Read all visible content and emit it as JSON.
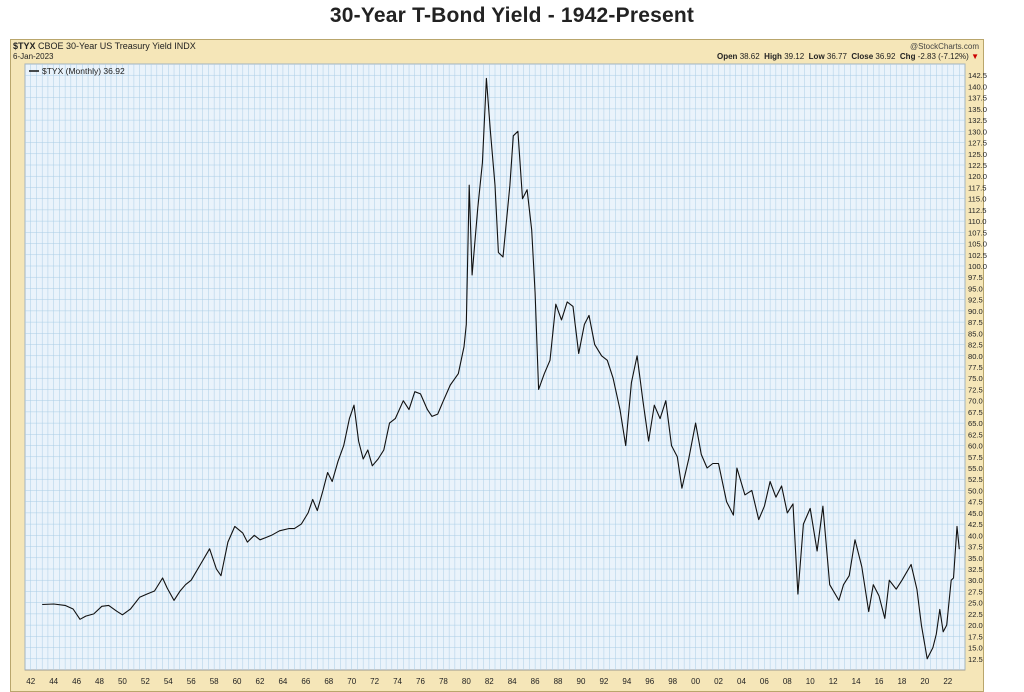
{
  "page": {
    "title": "30-Year T-Bond Yield - 1942-Present"
  },
  "header": {
    "symbol": "$TYX",
    "description": "CBOE 30-Year US Treasury Yield INDX",
    "date": "6-Jan-2023",
    "source": "@StockCharts.com",
    "legend": "$TYX (Monthly) 36.92",
    "open_label": "Open",
    "open": "38.62",
    "high_label": "High",
    "high": "39.12",
    "low_label": "Low",
    "low": "36.77",
    "close_label": "Close",
    "close": "36.92",
    "chg_label": "Chg",
    "chg": "-2.83 (-7.12%)"
  },
  "colors": {
    "frame": "#f5e6b8",
    "plot_bg": "#eaf3fb",
    "grid": "#aacde6",
    "line": "#111111",
    "down_marker": "#cc0000"
  },
  "chart_data": {
    "type": "line",
    "title": "30-Year T-Bond Yield - 1942-Present",
    "series": [
      {
        "name": "$TYX (Monthly) 36.92",
        "points": [
          [
            1943.0,
            24.6
          ],
          [
            1944.0,
            24.7
          ],
          [
            1945.0,
            24.4
          ],
          [
            1945.7,
            23.6
          ],
          [
            1946.3,
            21.3
          ],
          [
            1946.8,
            22.0
          ],
          [
            1947.5,
            22.5
          ],
          [
            1948.2,
            24.2
          ],
          [
            1948.8,
            24.4
          ],
          [
            1949.5,
            23.1
          ],
          [
            1950.0,
            22.3
          ],
          [
            1950.7,
            23.6
          ],
          [
            1951.5,
            26.2
          ],
          [
            1952.2,
            27.0
          ],
          [
            1952.8,
            27.6
          ],
          [
            1953.5,
            30.5
          ],
          [
            1953.9,
            28.3
          ],
          [
            1954.5,
            25.5
          ],
          [
            1955.0,
            27.5
          ],
          [
            1955.5,
            29.0
          ],
          [
            1956.0,
            30.0
          ],
          [
            1956.8,
            33.5
          ],
          [
            1957.6,
            37.0
          ],
          [
            1958.2,
            32.5
          ],
          [
            1958.6,
            31.0
          ],
          [
            1959.2,
            38.5
          ],
          [
            1959.8,
            42.0
          ],
          [
            1960.5,
            40.5
          ],
          [
            1960.9,
            38.5
          ],
          [
            1961.5,
            40.0
          ],
          [
            1962.0,
            39.0
          ],
          [
            1962.5,
            39.5
          ],
          [
            1963.0,
            40.0
          ],
          [
            1963.7,
            41.0
          ],
          [
            1964.5,
            41.5
          ],
          [
            1965.0,
            41.5
          ],
          [
            1965.6,
            42.5
          ],
          [
            1966.2,
            45.0
          ],
          [
            1966.6,
            48.0
          ],
          [
            1967.0,
            45.5
          ],
          [
            1967.5,
            50.0
          ],
          [
            1967.9,
            54.0
          ],
          [
            1968.3,
            52.0
          ],
          [
            1968.8,
            56.5
          ],
          [
            1969.3,
            60.0
          ],
          [
            1969.8,
            66.0
          ],
          [
            1970.2,
            69.0
          ],
          [
            1970.6,
            61.0
          ],
          [
            1971.0,
            57.0
          ],
          [
            1971.4,
            59.0
          ],
          [
            1971.8,
            55.5
          ],
          [
            1972.3,
            57.0
          ],
          [
            1972.8,
            59.0
          ],
          [
            1973.3,
            65.0
          ],
          [
            1973.8,
            66.0
          ],
          [
            1974.5,
            70.0
          ],
          [
            1975.0,
            68.0
          ],
          [
            1975.5,
            72.0
          ],
          [
            1976.0,
            71.5
          ],
          [
            1976.6,
            68.0
          ],
          [
            1977.0,
            66.5
          ],
          [
            1977.5,
            67.0
          ],
          [
            1978.0,
            70.0
          ],
          [
            1978.6,
            73.5
          ],
          [
            1979.3,
            76.0
          ],
          [
            1979.8,
            82.0
          ],
          [
            1980.0,
            87.0
          ],
          [
            1980.25,
            118.0
          ],
          [
            1980.5,
            98.0
          ],
          [
            1981.0,
            113.0
          ],
          [
            1981.4,
            123.0
          ],
          [
            1981.75,
            141.8
          ],
          [
            1982.1,
            130.0
          ],
          [
            1982.5,
            118.0
          ],
          [
            1982.8,
            103.0
          ],
          [
            1983.2,
            102.0
          ],
          [
            1983.8,
            118.0
          ],
          [
            1984.1,
            129.0
          ],
          [
            1984.5,
            130.0
          ],
          [
            1984.9,
            115.0
          ],
          [
            1985.3,
            117.0
          ],
          [
            1985.7,
            108.0
          ],
          [
            1986.0,
            94.0
          ],
          [
            1986.3,
            72.5
          ],
          [
            1986.8,
            76.0
          ],
          [
            1987.3,
            79.0
          ],
          [
            1987.8,
            91.5
          ],
          [
            1988.3,
            88.0
          ],
          [
            1988.8,
            92.0
          ],
          [
            1989.3,
            91.0
          ],
          [
            1989.8,
            80.5
          ],
          [
            1990.3,
            87.0
          ],
          [
            1990.7,
            89.0
          ],
          [
            1991.2,
            82.5
          ],
          [
            1991.8,
            80.0
          ],
          [
            1992.3,
            79.0
          ],
          [
            1992.8,
            75.0
          ],
          [
            1993.4,
            68.0
          ],
          [
            1993.9,
            60.0
          ],
          [
            1994.4,
            74.0
          ],
          [
            1994.9,
            80.0
          ],
          [
            1995.4,
            70.0
          ],
          [
            1995.9,
            61.0
          ],
          [
            1996.4,
            69.0
          ],
          [
            1996.9,
            66.0
          ],
          [
            1997.4,
            70.0
          ],
          [
            1997.9,
            60.0
          ],
          [
            1998.4,
            57.5
          ],
          [
            1998.8,
            50.5
          ],
          [
            1999.4,
            57.0
          ],
          [
            2000.0,
            65.0
          ],
          [
            2000.5,
            58.0
          ],
          [
            2001.0,
            55.0
          ],
          [
            2001.5,
            56.0
          ],
          [
            2002.0,
            56.0
          ],
          [
            2002.7,
            47.5
          ],
          [
            2003.3,
            44.5
          ],
          [
            2003.6,
            55.0
          ],
          [
            2004.3,
            49.0
          ],
          [
            2004.9,
            50.0
          ],
          [
            2005.5,
            43.5
          ],
          [
            2006.0,
            46.5
          ],
          [
            2006.5,
            52.0
          ],
          [
            2007.0,
            48.5
          ],
          [
            2007.5,
            51.0
          ],
          [
            2008.0,
            45.0
          ],
          [
            2008.5,
            47.0
          ],
          [
            2008.92,
            26.9
          ],
          [
            2009.4,
            42.5
          ],
          [
            2010.0,
            46.0
          ],
          [
            2010.6,
            36.5
          ],
          [
            2011.1,
            46.5
          ],
          [
            2011.7,
            29.0
          ],
          [
            2012.5,
            25.5
          ],
          [
            2012.9,
            29.0
          ],
          [
            2013.4,
            31.0
          ],
          [
            2013.9,
            39.0
          ],
          [
            2014.5,
            33.0
          ],
          [
            2015.1,
            23.0
          ],
          [
            2015.5,
            29.0
          ],
          [
            2016.0,
            26.5
          ],
          [
            2016.5,
            21.5
          ],
          [
            2016.9,
            30.0
          ],
          [
            2017.5,
            28.0
          ],
          [
            2018.0,
            30.0
          ],
          [
            2018.8,
            33.5
          ],
          [
            2019.3,
            28.0
          ],
          [
            2019.7,
            20.0
          ],
          [
            2020.2,
            12.5
          ],
          [
            2020.7,
            15.0
          ],
          [
            2021.0,
            18.0
          ],
          [
            2021.3,
            23.5
          ],
          [
            2021.6,
            18.5
          ],
          [
            2021.9,
            20.0
          ],
          [
            2022.3,
            30.0
          ],
          [
            2022.5,
            30.5
          ],
          [
            2022.8,
            42.0
          ],
          [
            2023.0,
            36.92
          ]
        ]
      }
    ],
    "x_ticks": [
      "42",
      "44",
      "46",
      "48",
      "50",
      "52",
      "54",
      "56",
      "58",
      "60",
      "62",
      "64",
      "66",
      "68",
      "70",
      "72",
      "74",
      "76",
      "78",
      "80",
      "82",
      "84",
      "86",
      "88",
      "90",
      "92",
      "94",
      "96",
      "98",
      "00",
      "02",
      "04",
      "06",
      "08",
      "10",
      "12",
      "14",
      "16",
      "18",
      "20",
      "22"
    ],
    "y_ticks": [
      "12.5",
      "15.0",
      "17.5",
      "20.0",
      "22.5",
      "25.0",
      "27.5",
      "30.0",
      "32.5",
      "35.0",
      "37.5",
      "40.0",
      "42.5",
      "45.0",
      "47.5",
      "50.0",
      "52.5",
      "55.0",
      "57.5",
      "60.0",
      "62.5",
      "65.0",
      "67.5",
      "70.0",
      "72.5",
      "75.0",
      "77.5",
      "80.0",
      "82.5",
      "85.0",
      "87.5",
      "90.0",
      "92.5",
      "95.0",
      "97.5",
      "100.0",
      "102.5",
      "105.0",
      "107.5",
      "110.0",
      "112.5",
      "115.0",
      "117.5",
      "120.0",
      "122.5",
      "125.0",
      "127.5",
      "130.0",
      "132.5",
      "135.0",
      "137.5",
      "140.0",
      "142.5"
    ],
    "xlim": [
      1941.5,
      2023.5
    ],
    "ylim": [
      10.0,
      145.0
    ],
    "grid": true,
    "legend": "top-left",
    "y_axis": "right"
  }
}
